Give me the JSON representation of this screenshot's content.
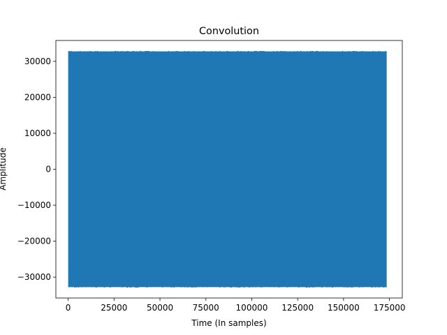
{
  "chart_data": {
    "type": "line",
    "title": "Convolution",
    "xlabel": "Time (In samples)",
    "ylabel": "Amplitude",
    "xlim": [
      -6700,
      182000
    ],
    "ylim": [
      -35800,
      35800
    ],
    "x_ticks": [
      0,
      25000,
      50000,
      75000,
      100000,
      125000,
      150000,
      175000
    ],
    "y_ticks": [
      -30000,
      -20000,
      -10000,
      0,
      10000,
      20000,
      30000
    ],
    "grid": false,
    "legend": "none",
    "series": [
      {
        "x_start": 0,
        "x_end": 173500,
        "y_min": -32768,
        "y_max": 32767,
        "color": "#1f77b4"
      }
    ]
  }
}
